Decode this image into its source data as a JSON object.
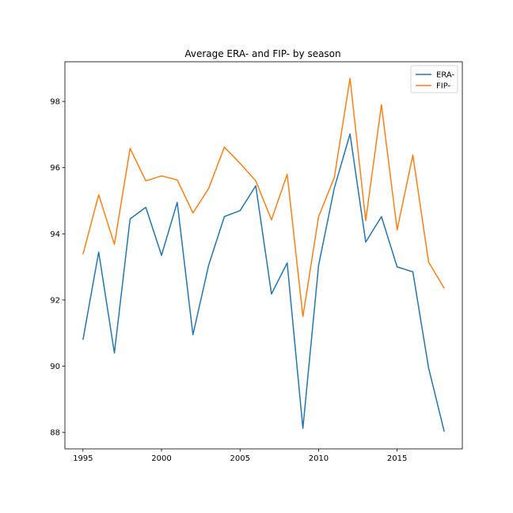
{
  "chart_data": {
    "type": "line",
    "title": "Average ERA- and FIP- by season",
    "xlabel": "",
    "ylabel": "",
    "x": [
      1995,
      1996,
      1997,
      1998,
      1999,
      2000,
      2001,
      2002,
      2003,
      2004,
      2005,
      2006,
      2007,
      2008,
      2009,
      2010,
      2011,
      2012,
      2013,
      2014,
      2015,
      2016,
      2017,
      2018
    ],
    "series": [
      {
        "name": "ERA-",
        "color": "#1f77b4",
        "values": [
          90.8,
          93.45,
          90.4,
          94.45,
          94.8,
          93.35,
          94.95,
          90.95,
          93.05,
          94.52,
          94.7,
          95.45,
          92.18,
          93.12,
          88.12,
          93.05,
          95.38,
          97.02,
          93.75,
          94.52,
          93.0,
          92.85,
          89.95,
          88.02
        ]
      },
      {
        "name": "FIP-",
        "color": "#ff7f0e",
        "values": [
          93.38,
          95.18,
          93.68,
          96.58,
          95.6,
          95.75,
          95.63,
          94.63,
          95.37,
          96.62,
          96.13,
          95.6,
          94.42,
          95.8,
          91.5,
          94.52,
          95.7,
          98.7,
          94.4,
          97.9,
          94.12,
          96.38,
          93.15,
          92.35
        ]
      }
    ],
    "xlim": [
      1993.85,
      2019.15
    ],
    "ylim": [
      87.5,
      99.2
    ],
    "xticks": [
      1995,
      2000,
      2005,
      2010,
      2015
    ],
    "yticks": [
      88,
      90,
      92,
      94,
      96,
      98
    ],
    "grid": false,
    "legend_position": "top-right"
  }
}
